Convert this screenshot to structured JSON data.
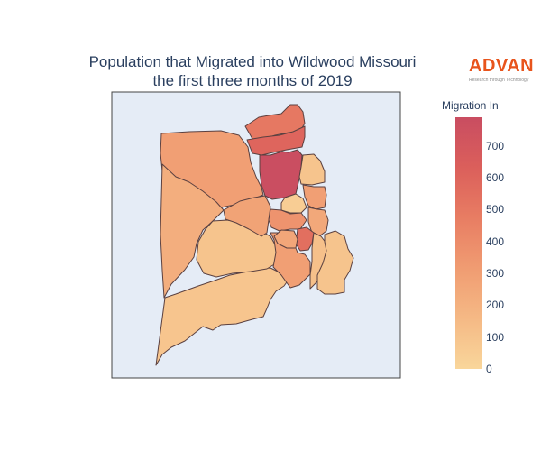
{
  "title": {
    "line1": "Population that Migrated into Wildwood Missouri",
    "line2": "the first three months of 2019"
  },
  "brand": {
    "name": "ADVAN",
    "tagline": "Research through Technology"
  },
  "colorbar": {
    "title": "Migration In",
    "ticks": [
      "0",
      "100",
      "200",
      "300",
      "400",
      "500",
      "600",
      "700"
    ],
    "max": 790,
    "colorscale": [
      "#f9d69b",
      "#f5b985",
      "#f09c72",
      "#e87d63",
      "#db5f5b",
      "#c94d61"
    ]
  },
  "map": {
    "background": "#e5ecf6",
    "region_values": {
      "north-tip": 500,
      "north-central": 600,
      "central-dark": 780,
      "northwest-west": 300,
      "west-middle": 220,
      "east-small-a": 100,
      "east-small-b": 300,
      "east-small-c": 250,
      "central-middle": 280,
      "central-light": 50,
      "center-east": 360,
      "center-south-dark": 550,
      "center-south": 300,
      "east-band": 120,
      "center-west": 100,
      "south-central": 260,
      "far-east": 100,
      "south-large": 90
    }
  }
}
